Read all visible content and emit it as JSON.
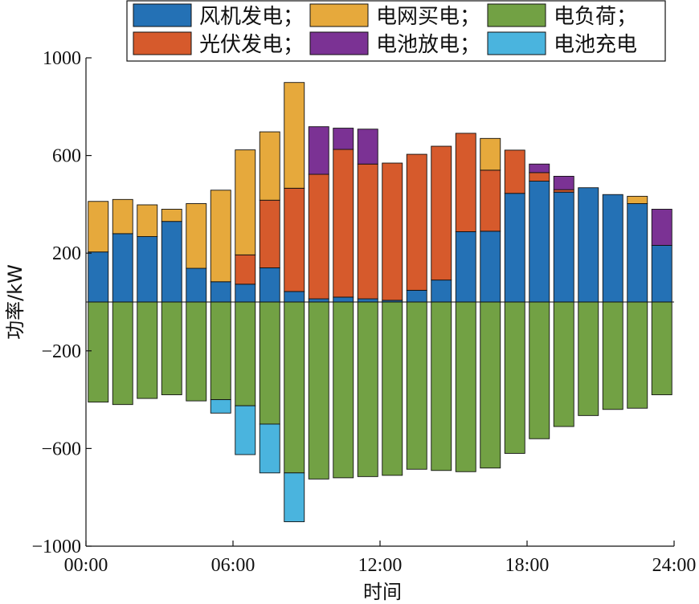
{
  "chart_data": {
    "type": "bar",
    "stacked": true,
    "xlabel": "时间",
    "ylabel": "功率/kW",
    "ylim": [
      -1000,
      1000
    ],
    "yticks": [
      1000,
      600,
      200,
      -200,
      -600,
      -1000
    ],
    "ytick_labels": [
      "1000",
      "600",
      "200",
      "−200",
      "−600",
      "−1000"
    ],
    "xlim": [
      0,
      24
    ],
    "xticks": [
      0,
      6,
      12,
      18,
      24
    ],
    "xtick_labels": [
      "00:00",
      "06:00",
      "12:00",
      "18:00",
      "24:00"
    ],
    "hours": [
      1,
      2,
      3,
      4,
      5,
      6,
      7,
      8,
      9,
      10,
      11,
      12,
      13,
      14,
      15,
      16,
      17,
      18,
      19,
      20,
      21,
      22,
      23,
      24
    ],
    "grid": false,
    "legend_position": "top",
    "series": [
      {
        "name": "风机发电；",
        "color": "#2471B5",
        "sign": "positive",
        "values": [
          205,
          280,
          268,
          330,
          138,
          83,
          73,
          140,
          43,
          13,
          20,
          13,
          7,
          48,
          90,
          288,
          290,
          445,
          495,
          450,
          468,
          440,
          403,
          232
        ]
      },
      {
        "name": "光伏发电；",
        "color": "#D65A2C",
        "sign": "positive",
        "values": [
          0,
          0,
          0,
          0,
          0,
          0,
          120,
          277,
          423,
          510,
          605,
          552,
          562,
          557,
          548,
          403,
          250,
          177,
          35,
          10,
          0,
          0,
          0,
          0
        ]
      },
      {
        "name": "电网买电；",
        "color": "#E6A93C",
        "sign": "positive",
        "values": [
          207,
          140,
          130,
          50,
          265,
          375,
          430,
          280,
          433,
          0,
          0,
          0,
          0,
          0,
          0,
          0,
          130,
          0,
          0,
          0,
          0,
          0,
          30,
          0
        ]
      },
      {
        "name": "电池放电；",
        "color": "#7B3294",
        "sign": "positive",
        "values": [
          0,
          0,
          0,
          0,
          0,
          0,
          0,
          0,
          0,
          195,
          87,
          143,
          0,
          0,
          0,
          0,
          0,
          0,
          35,
          55,
          0,
          0,
          0,
          148
        ]
      },
      {
        "name": "电负荷；",
        "color": "#72A144",
        "sign": "negative",
        "values": [
          -410,
          -420,
          -395,
          -380,
          -405,
          -400,
          -425,
          -500,
          -700,
          -725,
          -720,
          -715,
          -710,
          -685,
          -690,
          -695,
          -680,
          -620,
          -560,
          -510,
          -465,
          -440,
          -435,
          -380
        ]
      },
      {
        "name": "电池充电",
        "color": "#4AB4DE",
        "sign": "negative",
        "values": [
          0,
          0,
          0,
          0,
          0,
          -55,
          -200,
          -200,
          -200,
          0,
          0,
          0,
          0,
          0,
          0,
          0,
          0,
          0,
          0,
          0,
          0,
          0,
          0,
          0
        ]
      }
    ]
  }
}
